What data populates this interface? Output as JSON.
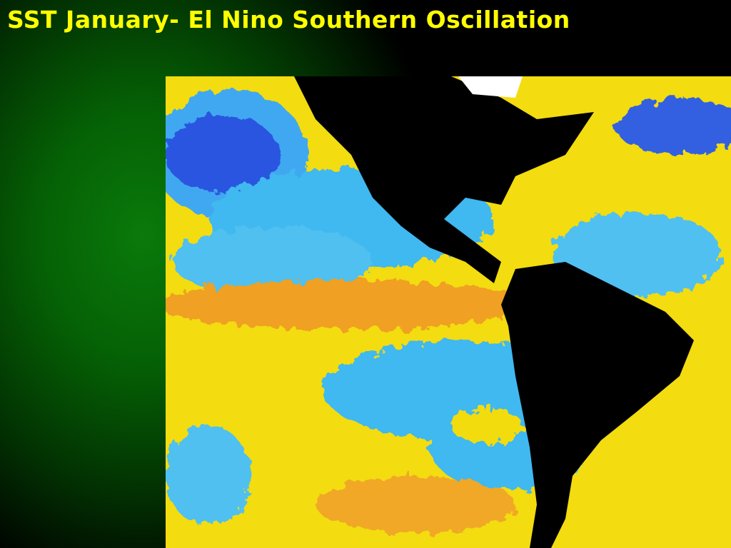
{
  "slide": {
    "title": "SST January- El Nino Southern Oscillation"
  }
}
